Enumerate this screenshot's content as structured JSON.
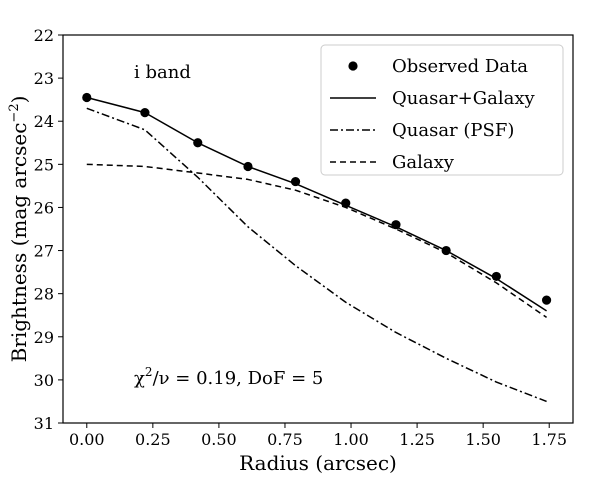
{
  "chart_data": {
    "type": "line",
    "title": "",
    "xlabel": "Radius (arcsec)",
    "ylabel": "Brightness (mag arcsec",
    "ylabel_sup": "−2",
    "ylabel_close": ")",
    "xlim": [
      -0.09,
      1.84
    ],
    "ylim": [
      31,
      22
    ],
    "y_inverted": true,
    "grid": false,
    "xticks": [
      0.0,
      0.25,
      0.5,
      0.75,
      1.0,
      1.25,
      1.5,
      1.75
    ],
    "xtick_labels": [
      "0.00",
      "0.25",
      "0.50",
      "0.75",
      "1.00",
      "1.25",
      "1.50",
      "1.75"
    ],
    "yticks": [
      22,
      23,
      24,
      25,
      26,
      27,
      28,
      29,
      30,
      31
    ],
    "ytick_labels": [
      "22",
      "23",
      "24",
      "25",
      "26",
      "27",
      "28",
      "29",
      "30",
      "31"
    ],
    "annotations": {
      "band": "i band",
      "chi2_prefix": "χ",
      "chi2_sup": "2",
      "chi2_rest": "/ν = 0.19, DoF = 5"
    },
    "legend_placement": "top-right",
    "series": [
      {
        "name": "Observed Data",
        "style": "points",
        "x": [
          0.0,
          0.22,
          0.42,
          0.61,
          0.79,
          0.98,
          1.17,
          1.36,
          1.55,
          1.74
        ],
        "y": [
          23.45,
          23.8,
          24.5,
          25.05,
          25.4,
          25.9,
          26.4,
          27.0,
          27.6,
          28.15
        ]
      },
      {
        "name": "Quasar+Galaxy",
        "style": "solid",
        "x": [
          0.0,
          0.22,
          0.42,
          0.61,
          0.79,
          0.98,
          1.17,
          1.36,
          1.55,
          1.74
        ],
        "y": [
          23.45,
          23.8,
          24.5,
          25.05,
          25.45,
          25.95,
          26.45,
          27.0,
          27.65,
          28.4
        ]
      },
      {
        "name": "Quasar (PSF)",
        "style": "dashdot",
        "x": [
          0.0,
          0.22,
          0.42,
          0.61,
          0.79,
          0.98,
          1.17,
          1.36,
          1.55,
          1.74
        ],
        "y": [
          23.7,
          24.2,
          25.3,
          26.45,
          27.35,
          28.2,
          28.9,
          29.5,
          30.05,
          30.5
        ]
      },
      {
        "name": "Galaxy",
        "style": "dashed",
        "x": [
          0.0,
          0.22,
          0.42,
          0.61,
          0.79,
          0.98,
          1.17,
          1.36,
          1.55,
          1.74
        ],
        "y": [
          25.0,
          25.05,
          25.2,
          25.35,
          25.6,
          26.0,
          26.5,
          27.05,
          27.75,
          28.55
        ]
      }
    ]
  }
}
